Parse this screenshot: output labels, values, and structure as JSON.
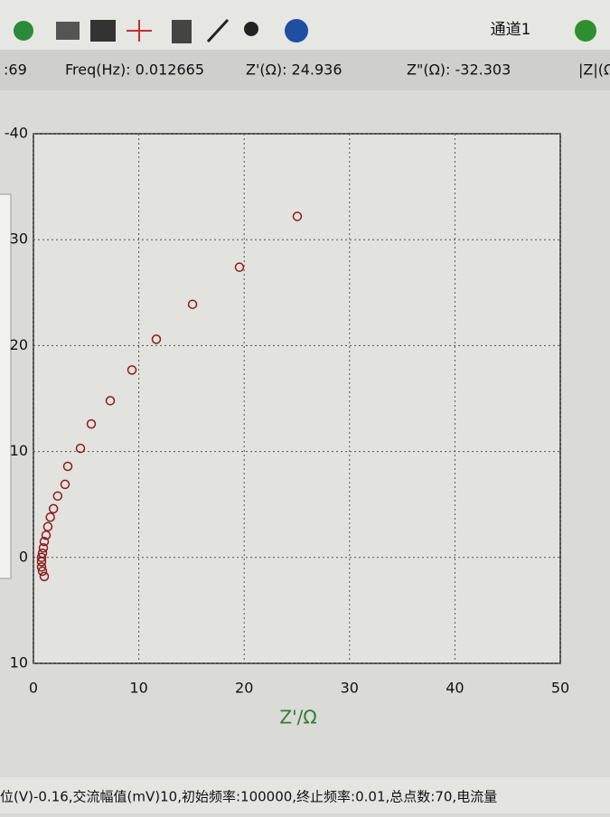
{
  "toolbar": {
    "channel": "通道1"
  },
  "status": {
    "index": ":69",
    "freq": "Freq(Hz): 0.012665",
    "zre": "Z'(Ω): 24.936",
    "zim": "Z\"(Ω): -32.303",
    "zmod": "|Z|(Ω"
  },
  "chart_data": {
    "type": "scatter",
    "x_label": "Z'/Ω",
    "x": [
      25.04,
      19.55,
      15.1,
      11.66,
      9.35,
      7.29,
      5.49,
      4.46,
      3.26,
      3.0,
      2.3,
      1.9,
      1.6,
      1.37,
      1.2,
      1.03,
      0.94,
      0.86,
      0.77,
      0.77,
      0.77,
      0.86,
      1.03
    ],
    "series": [
      {
        "color": "#8b1a1a",
        "values": [
          -32.2,
          -27.4,
          -23.9,
          -20.6,
          -17.7,
          -14.8,
          -12.6,
          -10.3,
          -8.6,
          -6.9,
          -5.8,
          -4.6,
          -3.8,
          -2.9,
          -2.1,
          -1.5,
          -0.9,
          -0.4,
          0,
          0.4,
          0.9,
          1.3,
          1.8
        ]
      }
    ],
    "xlim": [
      0,
      50
    ],
    "xticks": [
      0,
      10,
      20,
      30,
      40,
      50
    ],
    "ylim": [
      10,
      -40
    ],
    "yticks": [
      {
        "value": -40,
        "label": "-40"
      },
      {
        "value": -30,
        "label": "30"
      },
      {
        "value": -20,
        "label": "20"
      },
      {
        "value": -10,
        "label": "10"
      },
      0,
      10
    ],
    "grid": true
  },
  "footer": "位(V)-0.16,交流幅值(mV)10,初始频率:100000,终止频率:0.01,总点数:70,电流量"
}
